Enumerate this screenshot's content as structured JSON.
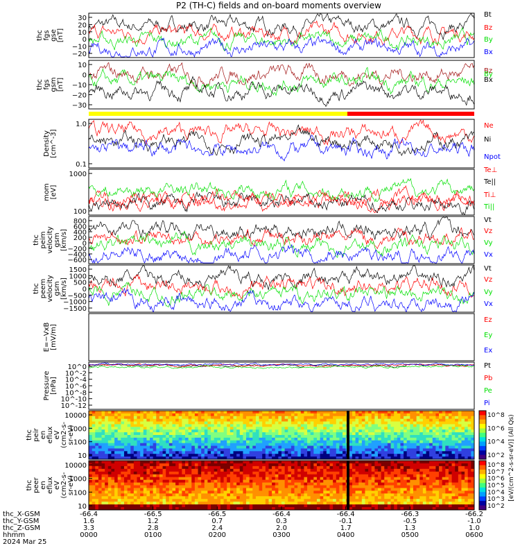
{
  "title": "P2 (TH-C) fields and on-board moments overview",
  "colors": {
    "black": "#000000",
    "red": "#ff0000",
    "green": "#00e000",
    "blue": "#0000ff",
    "darkred": "#a01010",
    "yellow": "#ffff00"
  },
  "chart_data": [
    {
      "type": "line",
      "id": "fgs_gse",
      "ylabel": [
        "thc",
        "fgs",
        "gse",
        "[nT]"
      ],
      "yticks": [
        "30",
        "20",
        "10",
        "0",
        "−10",
        "−20"
      ],
      "ylim": [
        -28,
        32
      ],
      "series": [
        {
          "name": "Bt",
          "color": "#000000"
        },
        {
          "name": "Bz",
          "color": "#ff0000"
        },
        {
          "name": "By",
          "color": "#00e000"
        },
        {
          "name": "Bx",
          "color": "#0000ff"
        }
      ]
    },
    {
      "type": "line",
      "id": "fgs_gsm",
      "ylabel": [
        "thc",
        "fgs",
        "gsm",
        "[nT]"
      ],
      "yticks": [
        "10",
        "0",
        "−10",
        "−20",
        "−30"
      ],
      "ylim": [
        -36,
        15
      ],
      "series": [
        {
          "name": "Bz",
          "color": "#a01010"
        },
        {
          "name": "By",
          "color": "#00e000"
        },
        {
          "name": "Bx",
          "color": "#000000"
        }
      ]
    },
    {
      "type": "line",
      "id": "density",
      "ylabel": [
        "Density",
        "[cm^-3]"
      ],
      "yticks": [
        "1.0",
        "0.1"
      ],
      "scale": "log",
      "series": [
        {
          "name": "Ne",
          "color": "#ff0000"
        },
        {
          "name": "Ni",
          "color": "#000000"
        },
        {
          "name": "Npot",
          "color": "#0000ff"
        }
      ]
    },
    {
      "type": "line",
      "id": "temperature",
      "ylabel": [
        "mom",
        "[eV]"
      ],
      "yticks": [
        "1000",
        "100"
      ],
      "scale": "log",
      "series": [
        {
          "name": "Te⊥",
          "color": "#ff0000"
        },
        {
          "name": "Te||",
          "color": "#000000"
        },
        {
          "name": "Ti⊥",
          "color": "#ff0000"
        },
        {
          "name": "Ti||",
          "color": "#00e000"
        }
      ]
    },
    {
      "type": "line",
      "id": "peim_velocity",
      "ylabel": [
        "thc",
        "peim",
        "velocity",
        "gsm",
        "[km/s]"
      ],
      "yticks": [
        "800",
        "600",
        "400",
        "200",
        "0",
        "−200",
        "−400",
        "−600"
      ],
      "ylim": [
        -650,
        850
      ],
      "series": [
        {
          "name": "Vt",
          "color": "#000000"
        },
        {
          "name": "Vz",
          "color": "#ff0000"
        },
        {
          "name": "Vy",
          "color": "#00e000"
        },
        {
          "name": "Vx",
          "color": "#0000ff"
        }
      ]
    },
    {
      "type": "line",
      "id": "peem_velocity",
      "ylabel": [
        "thc",
        "peem",
        "velocity",
        "gsm",
        "[km/s]"
      ],
      "yticks": [
        "1500",
        "1000",
        "500",
        "0",
        "−500",
        "−1000",
        "−1500"
      ],
      "ylim": [
        -1500,
        1500
      ],
      "series": [
        {
          "name": "Vt",
          "color": "#000000"
        },
        {
          "name": "Vz",
          "color": "#ff0000"
        },
        {
          "name": "Vy",
          "color": "#00e000"
        },
        {
          "name": "Vx",
          "color": "#0000ff"
        }
      ]
    },
    {
      "type": "line",
      "id": "efield",
      "ylabel": [
        "E=−VxB",
        "[mV/m]"
      ],
      "yticks": [],
      "series": [
        {
          "name": "Ez",
          "color": "#ff0000"
        },
        {
          "name": "Ey",
          "color": "#00e000"
        },
        {
          "name": "Ex",
          "color": "#0000ff"
        }
      ]
    },
    {
      "type": "line",
      "id": "pressure",
      "ylabel": [
        "Pressure",
        "[nPa]"
      ],
      "yticks": [
        "10^0",
        "10^-2",
        "10^-4",
        "10^-6",
        "10^-8",
        "10^-10",
        "10^-12"
      ],
      "scale": "log",
      "series": [
        {
          "name": "Pt",
          "color": "#000000"
        },
        {
          "name": "Pb",
          "color": "#ff0000"
        },
        {
          "name": "Pe",
          "color": "#00e000"
        },
        {
          "name": "Pi",
          "color": "#0000ff"
        }
      ]
    },
    {
      "type": "heatmap",
      "id": "peir_spec",
      "ylabel": [
        "thc",
        "peir",
        "en",
        "eflux",
        "eV",
        "(cm2-s-",
        "sr-eV)"
      ],
      "yticks": [
        "10000",
        "1000",
        "100",
        "10"
      ],
      "scale": "log"
    },
    {
      "type": "heatmap",
      "id": "peer_spec",
      "ylabel": [
        "thc",
        "peer",
        "en",
        "eflux",
        "eV",
        "(cm2-s-",
        "sr-eV)"
      ],
      "yticks": [
        "10000",
        "1000",
        "100",
        "10"
      ],
      "scale": "log"
    }
  ],
  "colorbar": {
    "label": "[eV/(cm^2-s-sr-eV)] (All Qs)",
    "ticks_top": [
      "10^8",
      "10^6",
      "10^4",
      "10^2"
    ],
    "ticks_bottom": [
      "10^8",
      "10^7",
      "10^6",
      "10^5",
      "10^4",
      "10^3",
      "10^2"
    ]
  },
  "xaxis": {
    "row_labels": [
      "thc_X-GSM",
      "thc_Y-GSM",
      "thc_Z-GSM",
      "hhmm",
      "2024 Mar 25"
    ],
    "rows": [
      [
        "-66.4",
        "-66.5",
        "-66.5",
        "-66.4",
        "-66.4",
        "-66.3",
        "-66.2"
      ],
      [
        "1.6",
        "1.2",
        "0.7",
        "0.3",
        "-0.1",
        "-0.5",
        "-1.0"
      ],
      [
        "3.3",
        "2.8",
        "2.4",
        "2.0",
        "1.7",
        "1.3",
        "1.0"
      ],
      [
        "0000",
        "0100",
        "0200",
        "0300",
        "0400",
        "0500",
        "0600"
      ]
    ]
  }
}
